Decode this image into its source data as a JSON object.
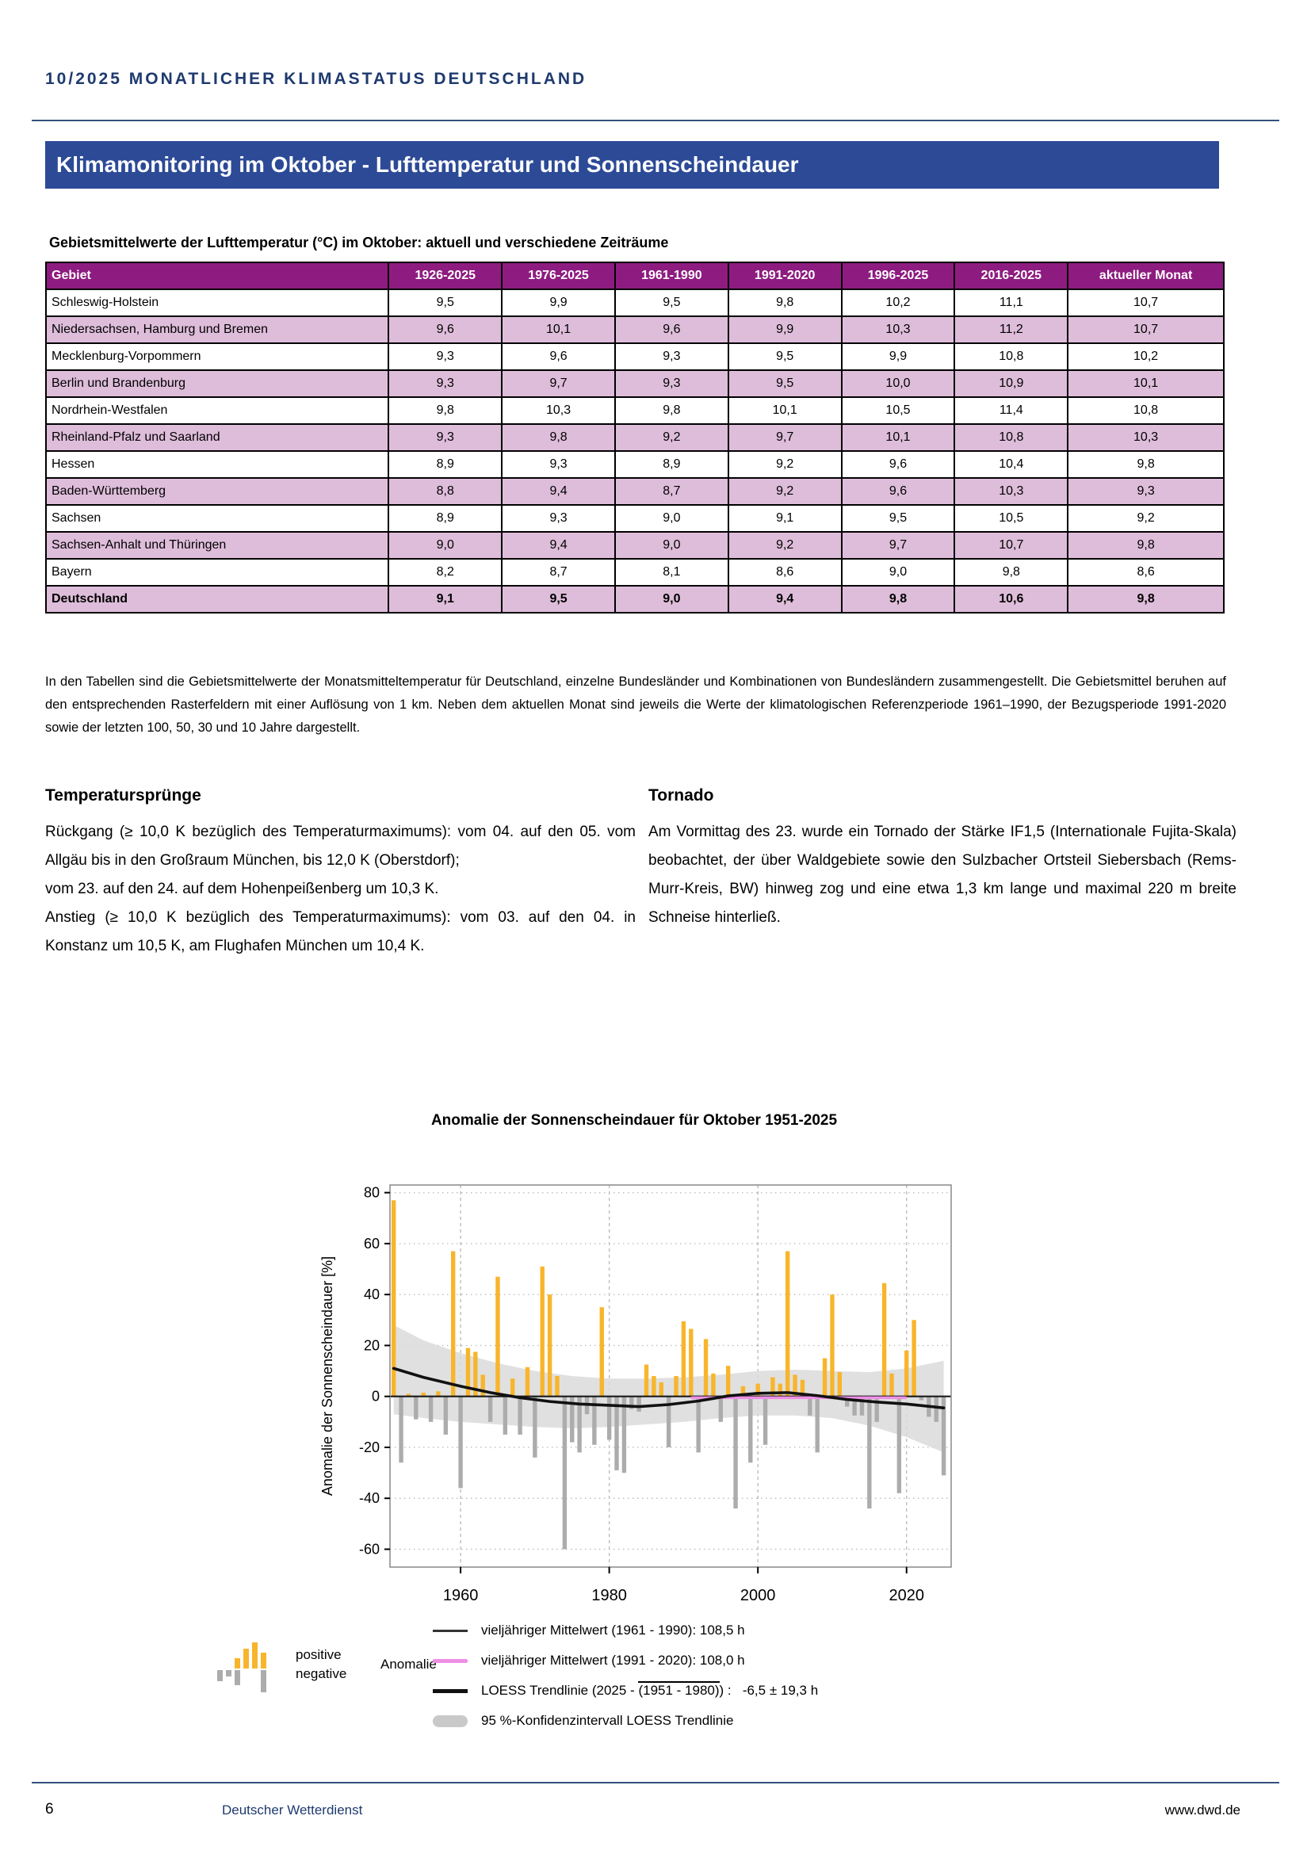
{
  "page": {
    "issue_masthead": "10/2025   MONATLICHER KLIMASTATUS DEUTSCHLAND"
  },
  "banner": {
    "title": "Klimamonitoring im Oktober - Lufttemperatur und Sonnenscheindauer"
  },
  "table": {
    "caption": "Gebietsmittelwerte der Lufttemperatur (°C) im Oktober: aktuell und verschiedene Zeiträume",
    "columns": [
      "Gebiet",
      "1926-2025",
      "1976-2025",
      "1961-1990",
      "1991-2020",
      "1996-2025",
      "2016-2025",
      "aktueller Monat"
    ],
    "rows": [
      {
        "region": "Schleswig-Holstein",
        "values": [
          "9,5",
          "9,9",
          "9,5",
          "9,8",
          "10,2",
          "11,1",
          "10,7"
        ],
        "shaded": false,
        "bold": false
      },
      {
        "region": "Niedersachsen, Hamburg und Bremen",
        "values": [
          "9,6",
          "10,1",
          "9,6",
          "9,9",
          "10,3",
          "11,2",
          "10,7"
        ],
        "shaded": true,
        "bold": false
      },
      {
        "region": "Mecklenburg-Vorpommern",
        "values": [
          "9,3",
          "9,6",
          "9,3",
          "9,5",
          "9,9",
          "10,8",
          "10,2"
        ],
        "shaded": false,
        "bold": false
      },
      {
        "region": "Berlin und Brandenburg",
        "values": [
          "9,3",
          "9,7",
          "9,3",
          "9,5",
          "10,0",
          "10,9",
          "10,1"
        ],
        "shaded": true,
        "bold": false
      },
      {
        "region": "Nordrhein-Westfalen",
        "values": [
          "9,8",
          "10,3",
          "9,8",
          "10,1",
          "10,5",
          "11,4",
          "10,8"
        ],
        "shaded": false,
        "bold": false
      },
      {
        "region": "Rheinland-Pfalz und Saarland",
        "values": [
          "9,3",
          "9,8",
          "9,2",
          "9,7",
          "10,1",
          "10,8",
          "10,3"
        ],
        "shaded": true,
        "bold": false
      },
      {
        "region": "Hessen",
        "values": [
          "8,9",
          "9,3",
          "8,9",
          "9,2",
          "9,6",
          "10,4",
          "9,8"
        ],
        "shaded": false,
        "bold": false
      },
      {
        "region": "Baden-Württemberg",
        "values": [
          "8,8",
          "9,4",
          "8,7",
          "9,2",
          "9,6",
          "10,3",
          "9,3"
        ],
        "shaded": true,
        "bold": false
      },
      {
        "region": "Sachsen",
        "values": [
          "8,9",
          "9,3",
          "9,0",
          "9,1",
          "9,5",
          "10,5",
          "9,2"
        ],
        "shaded": false,
        "bold": false
      },
      {
        "region": "Sachsen-Anhalt und Thüringen",
        "values": [
          "9,0",
          "9,4",
          "9,0",
          "9,2",
          "9,7",
          "10,7",
          "9,8"
        ],
        "shaded": true,
        "bold": false
      },
      {
        "region": "Bayern",
        "values": [
          "8,2",
          "8,7",
          "8,1",
          "8,6",
          "9,0",
          "9,8",
          "8,6"
        ],
        "shaded": false,
        "bold": false
      },
      {
        "region": "Deutschland",
        "values": [
          "9,1",
          "9,5",
          "9,0",
          "9,4",
          "9,8",
          "10,6",
          "9,8"
        ],
        "shaded": true,
        "bold": true
      }
    ]
  },
  "paragraph": "In den Tabellen sind die Gebietsmittelwerte der Monatsmitteltemperatur für Deutschland, einzelne Bundesländer und Kombinationen von Bundesländern zusammengestellt. Die Gebietsmittel beruhen auf den entsprechenden Rasterfeldern mit einer Auflösung von 1 km. Neben dem aktuellen Monat sind jeweils die Werte der klimatologischen Referenzperiode 1961–1990, der Bezugsperiode 1991-2020 sowie der letzten 100, 50, 30 und 10 Jahre dargestellt.",
  "sections": {
    "temperatur": {
      "heading": "Temperatursprünge",
      "body": "Rückgang (≥ 10,0 K bezüglich des Temperaturmaximums): vom 04. auf den 05. vom Allgäu bis in den Großraum München, bis 12,0 K (Oberstdorf);\nvom 23. auf den 24. auf dem Hohenpeißenberg um 10,3 K.\nAnstieg (≥ 10,0 K bezüglich des Temperaturmaximums): vom 03. auf den 04. in Konstanz um 10,5 K, am Flughafen München um 10,4 K."
    },
    "tornado": {
      "heading": "Tornado",
      "body": "Am Vormittag des 23. wurde ein Tornado der Stärke IF1,5 (Internationale Fujita-Skala) beobachtet, der über Waldgebiete sowie den Sulzbacher Ortsteil Siebersbach (Rems-Murr-Kreis, BW) hinweg zog und eine etwa 1,3 km lange und maximal 220 m breite Schneise hinterließ."
    }
  },
  "chart_data": {
    "type": "bar",
    "title": "Anomalie der Sonnenscheindauer für Oktober 1951-2025",
    "ylabel": "Anomalie der Sonnenscheindauer [%]",
    "ylim": [
      -67,
      83
    ],
    "yticks": [
      80,
      60,
      40,
      20,
      0,
      -20,
      -40,
      -60
    ],
    "xticks": [
      1960,
      1980,
      2000,
      2020
    ],
    "years": [
      1951,
      1952,
      1953,
      1954,
      1955,
      1956,
      1957,
      1958,
      1959,
      1960,
      1961,
      1962,
      1963,
      1964,
      1965,
      1966,
      1967,
      1968,
      1969,
      1970,
      1971,
      1972,
      1973,
      1974,
      1975,
      1976,
      1977,
      1978,
      1979,
      1980,
      1981,
      1982,
      1983,
      1984,
      1985,
      1986,
      1987,
      1988,
      1989,
      1990,
      1991,
      1992,
      1993,
      1994,
      1995,
      1996,
      1997,
      1998,
      1999,
      2000,
      2001,
      2002,
      2003,
      2004,
      2005,
      2006,
      2007,
      2008,
      2009,
      2010,
      2011,
      2012,
      2013,
      2014,
      2015,
      2016,
      2017,
      2018,
      2019,
      2020,
      2021,
      2022,
      2023,
      2024,
      2025
    ],
    "values": [
      77,
      -26,
      1,
      -9,
      1.5,
      -10,
      2,
      -15,
      57,
      -36,
      19,
      17.5,
      8.5,
      -10,
      47,
      -15,
      7,
      -15,
      11.5,
      -24,
      51,
      40,
      8,
      -60,
      -18,
      -22,
      -7,
      -19,
      35,
      -17,
      -29,
      -30,
      -5,
      -6,
      12.5,
      8,
      5.5,
      -20,
      8,
      29.5,
      26.5,
      -22,
      22.5,
      9,
      -10,
      12,
      -44,
      4,
      -26,
      5,
      -19,
      7.5,
      5,
      57,
      8.5,
      6.5,
      -7.5,
      -22,
      15,
      40,
      9.5,
      -4,
      -7.5,
      -7.5,
      -44,
      -10,
      44.5,
      9,
      -38,
      18,
      30,
      -1.5,
      -8,
      -10,
      -31
    ],
    "bar_colors": {
      "positive": "#F8B52B",
      "negative": "#ACACAC"
    },
    "reference_mean_1961_1990": {
      "label": "vieljähriger Mittelwert (1961 - 1990): 108,5 h",
      "value_pct": 0
    },
    "reference_mean_1991_2020": {
      "label": "vieljähriger Mittelwert (1991 - 2020): 108,0 h",
      "value_pct": -0.5,
      "span": [
        1991,
        2020
      ],
      "color": "#EE8FE4"
    },
    "loess": {
      "label_pre": "LOESS Trendlinie (2025 - ",
      "label_overline": "(1951 - 1980)",
      "label_post": ") :",
      "label_value": "-6,5 ± 19,3 h",
      "points": [
        [
          1951,
          11
        ],
        [
          1955,
          7.5
        ],
        [
          1960,
          4
        ],
        [
          1964,
          1.5
        ],
        [
          1968,
          -0.5
        ],
        [
          1972,
          -2
        ],
        [
          1976,
          -3
        ],
        [
          1980,
          -3.5
        ],
        [
          1984,
          -4
        ],
        [
          1988,
          -3.2
        ],
        [
          1992,
          -1.8
        ],
        [
          1996,
          0.2
        ],
        [
          2000,
          1.2
        ],
        [
          2004,
          1.5
        ],
        [
          2008,
          0.3
        ],
        [
          2012,
          -1.2
        ],
        [
          2016,
          -2.2
        ],
        [
          2020,
          -3
        ],
        [
          2025,
          -4.5
        ]
      ]
    },
    "confidence_band": {
      "label": "95 %-Konfidenzintervall LOESS Trendlinie",
      "top": [
        [
          1951,
          28
        ],
        [
          1955,
          22
        ],
        [
          1960,
          17
        ],
        [
          1965,
          13
        ],
        [
          1970,
          10
        ],
        [
          1975,
          8
        ],
        [
          1980,
          7
        ],
        [
          1985,
          7
        ],
        [
          1990,
          7.5
        ],
        [
          1995,
          8.5
        ],
        [
          2000,
          10
        ],
        [
          2005,
          10.5
        ],
        [
          2010,
          10
        ],
        [
          2015,
          9.5
        ],
        [
          2020,
          11
        ],
        [
          2025,
          14
        ]
      ],
      "bottom": [
        [
          1951,
          -7
        ],
        [
          1955,
          -8.5
        ],
        [
          1960,
          -10
        ],
        [
          1965,
          -11
        ],
        [
          1970,
          -12
        ],
        [
          1975,
          -12.5
        ],
        [
          1980,
          -12
        ],
        [
          1985,
          -11
        ],
        [
          1990,
          -10
        ],
        [
          1995,
          -8.5
        ],
        [
          2000,
          -7.5
        ],
        [
          2005,
          -7.5
        ],
        [
          2010,
          -8.5
        ],
        [
          2015,
          -11.5
        ],
        [
          2020,
          -16
        ],
        [
          2025,
          -22
        ]
      ]
    },
    "anomaly_legend": {
      "positive": "positive",
      "negative": "negative",
      "label": "Anomalie"
    }
  },
  "footer": {
    "page_number": "6",
    "organization": "Deutscher Wetterdienst",
    "url": "www.dwd.de"
  },
  "colors": {
    "banner_blue": "#2C4A96",
    "navy_text": "#1E3A6E",
    "table_header_purple": "#8E1C80",
    "table_row_purple": "#DEBDDA"
  }
}
